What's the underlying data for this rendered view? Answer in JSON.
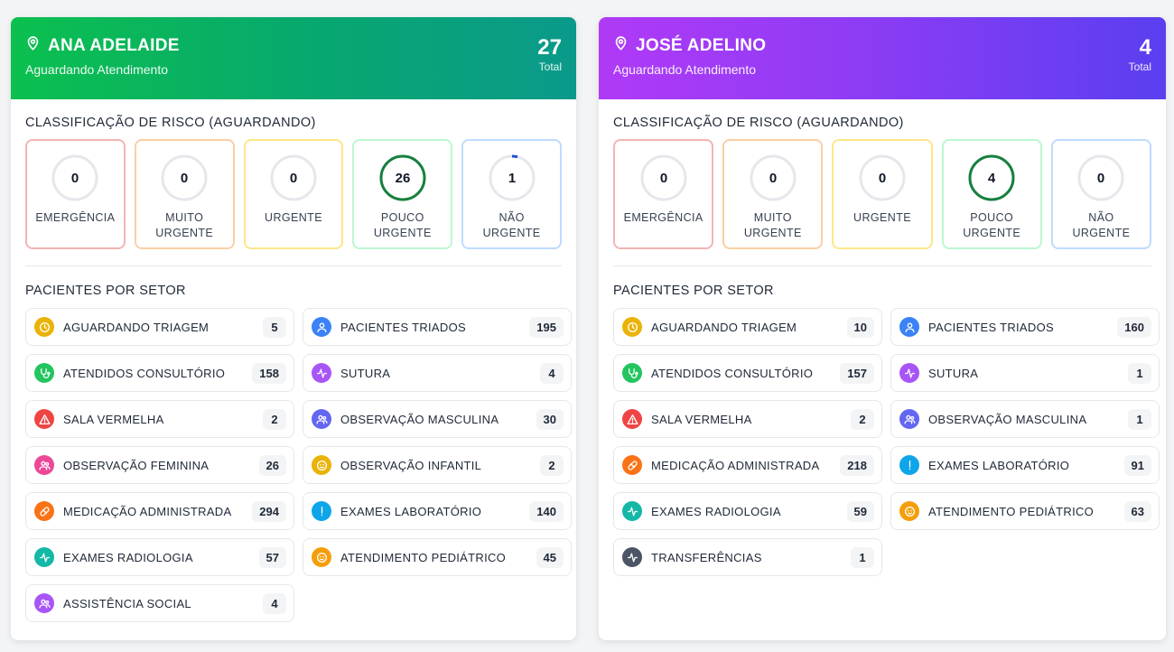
{
  "units": [
    {
      "name": "ANA ADELAIDE",
      "status": "Aguardando Atendimento",
      "total": "27",
      "total_label": "Total",
      "risk_title": "CLASSIFICAÇÃO DE RISCO (AGUARDANDO)",
      "risks": [
        {
          "value": "0",
          "label": "EMERGÊNCIA",
          "border": "#f4b4b4",
          "ring": "#e5e7eb",
          "arc": "#dc2626",
          "fraction": 0
        },
        {
          "value": "0",
          "label": "MUITO URGENTE",
          "border": "#fbcfa3",
          "ring": "#e5e7eb",
          "arc": "#ea580c",
          "fraction": 0
        },
        {
          "value": "0",
          "label": "URGENTE",
          "border": "#fde68a",
          "ring": "#e5e7eb",
          "arc": "#ca8a04",
          "fraction": 0
        },
        {
          "value": "26",
          "label": "POUCO URGENTE",
          "border": "#bbf7d0",
          "ring": "#e5e7eb",
          "arc": "#15803d",
          "fraction": 1
        },
        {
          "value": "1",
          "label": "NÃO URGENTE",
          "border": "#bfdbfe",
          "ring": "#e5e7eb",
          "arc": "#1d4ed8",
          "fraction": 0.04
        }
      ],
      "sector_title": "PACIENTES POR SETOR",
      "sectors": [
        {
          "name": "AGUARDANDO TRIAGEM",
          "count": "5",
          "icon": "clock-icon",
          "color": "#eab308"
        },
        {
          "name": "PACIENTES TRIADOS",
          "count": "195",
          "icon": "user-icon",
          "color": "#3b82f6"
        },
        {
          "name": "ATENDIDOS CONSULTÓRIO",
          "count": "158",
          "icon": "stethoscope-icon",
          "color": "#22c55e"
        },
        {
          "name": "SUTURA",
          "count": "4",
          "icon": "activity-icon",
          "color": "#a855f7"
        },
        {
          "name": "SALA VERMELHA",
          "count": "2",
          "icon": "alert-icon",
          "color": "#ef4444"
        },
        {
          "name": "OBSERVAÇÃO MASCULINA",
          "count": "30",
          "icon": "users-icon",
          "color": "#6366f1"
        },
        {
          "name": "OBSERVAÇÃO FEMININA",
          "count": "26",
          "icon": "users-icon",
          "color": "#ec4899"
        },
        {
          "name": "OBSERVAÇÃO INFANTIL",
          "count": "2",
          "icon": "baby-icon",
          "color": "#eab308"
        },
        {
          "name": "MEDICAÇÃO ADMINISTRADA",
          "count": "294",
          "icon": "pill-icon",
          "color": "#f97316"
        },
        {
          "name": "EXAMES LABORATÓRIO",
          "count": "140",
          "icon": "flask-icon",
          "color": "#0ea5e9"
        },
        {
          "name": "EXAMES RADIOLOGIA",
          "count": "57",
          "icon": "activity-icon",
          "color": "#14b8a6"
        },
        {
          "name": "ATENDIMENTO PEDIÁTRICO",
          "count": "45",
          "icon": "baby-icon",
          "color": "#f59e0b"
        },
        {
          "name": "ASSISTÊNCIA SOCIAL",
          "count": "4",
          "icon": "users-icon",
          "color": "#a855f7"
        }
      ]
    },
    {
      "name": "JOSÉ ADELINO",
      "status": "Aguardando Atendimento",
      "total": "4",
      "total_label": "Total",
      "risk_title": "CLASSIFICAÇÃO DE RISCO (AGUARDANDO)",
      "risks": [
        {
          "value": "0",
          "label": "EMERGÊNCIA",
          "border": "#f4b4b4",
          "ring": "#e5e7eb",
          "arc": "#dc2626",
          "fraction": 0
        },
        {
          "value": "0",
          "label": "MUITO URGENTE",
          "border": "#fbcfa3",
          "ring": "#e5e7eb",
          "arc": "#ea580c",
          "fraction": 0
        },
        {
          "value": "0",
          "label": "URGENTE",
          "border": "#fde68a",
          "ring": "#e5e7eb",
          "arc": "#ca8a04",
          "fraction": 0
        },
        {
          "value": "4",
          "label": "POUCO URGENTE",
          "border": "#bbf7d0",
          "ring": "#e5e7eb",
          "arc": "#15803d",
          "fraction": 1
        },
        {
          "value": "0",
          "label": "NÃO URGENTE",
          "border": "#bfdbfe",
          "ring": "#e5e7eb",
          "arc": "#1d4ed8",
          "fraction": 0
        }
      ],
      "sector_title": "PACIENTES POR SETOR",
      "sectors": [
        {
          "name": "AGUARDANDO TRIAGEM",
          "count": "10",
          "icon": "clock-icon",
          "color": "#eab308"
        },
        {
          "name": "PACIENTES TRIADOS",
          "count": "160",
          "icon": "user-icon",
          "color": "#3b82f6"
        },
        {
          "name": "ATENDIDOS CONSULTÓRIO",
          "count": "157",
          "icon": "stethoscope-icon",
          "color": "#22c55e"
        },
        {
          "name": "SUTURA",
          "count": "1",
          "icon": "activity-icon",
          "color": "#a855f7"
        },
        {
          "name": "SALA VERMELHA",
          "count": "2",
          "icon": "alert-icon",
          "color": "#ef4444"
        },
        {
          "name": "OBSERVAÇÃO MASCULINA",
          "count": "1",
          "icon": "users-icon",
          "color": "#6366f1"
        },
        {
          "name": "MEDICAÇÃO ADMINISTRADA",
          "count": "218",
          "icon": "pill-icon",
          "color": "#f97316"
        },
        {
          "name": "EXAMES LABORATÓRIO",
          "count": "91",
          "icon": "flask-icon",
          "color": "#0ea5e9"
        },
        {
          "name": "EXAMES RADIOLOGIA",
          "count": "59",
          "icon": "activity-icon",
          "color": "#14b8a6"
        },
        {
          "name": "ATENDIMENTO PEDIÁTRICO",
          "count": "63",
          "icon": "baby-icon",
          "color": "#f59e0b"
        },
        {
          "name": "TRANSFERÊNCIAS",
          "count": "1",
          "icon": "activity-icon",
          "color": "#4b5563"
        }
      ]
    }
  ]
}
